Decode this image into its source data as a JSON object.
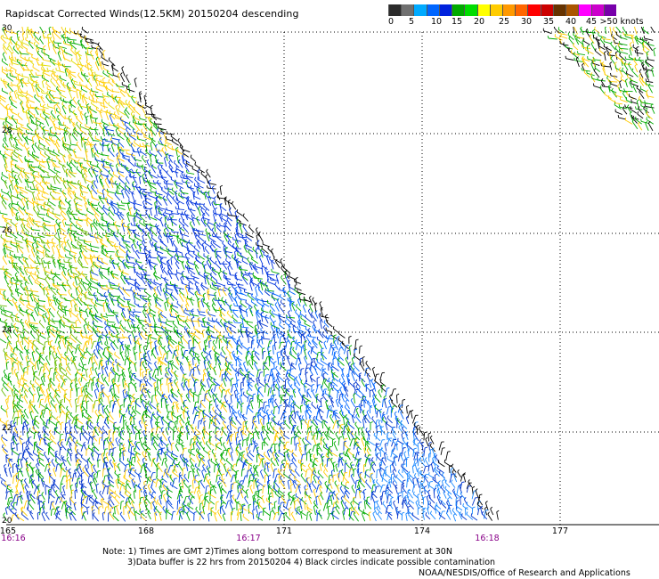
{
  "title": "Rapidscat Corrected Winds(12.5KM) 20150204 descending",
  "legend": {
    "labels": [
      "0",
      "5",
      "10",
      "15",
      "20",
      "25",
      "30",
      "35",
      "40",
      "45",
      ">50 knots"
    ],
    "colors": [
      "#2b2b2b",
      "#707070",
      "#00aaff",
      "#0066ff",
      "#0022dd",
      "#00aa00",
      "#00dd00",
      "#ffff00",
      "#ffcc00",
      "#ff9900",
      "#ff6600",
      "#ff0000",
      "#cc0000",
      "#663300",
      "#aa5500",
      "#ff00ff",
      "#cc00cc",
      "#7700aa"
    ]
  },
  "map": {
    "lat_labels": [
      "30",
      "28",
      "26",
      "24",
      "22",
      "20"
    ],
    "lon_labels": [
      "165",
      "168",
      "171",
      "174",
      "177"
    ],
    "time_labels": [
      "16:16",
      "16:17",
      "16:18"
    ]
  },
  "notes": {
    "line1": "Note: 1) Times are GMT 2)Times along bottom correspond to measurement at 30N",
    "line2": "3)Data buffer is 22 hrs from 20150204 4) Black circles indicate possible contamination"
  },
  "credit": "NOAA/NESDIS/Office of Research and Applications"
}
